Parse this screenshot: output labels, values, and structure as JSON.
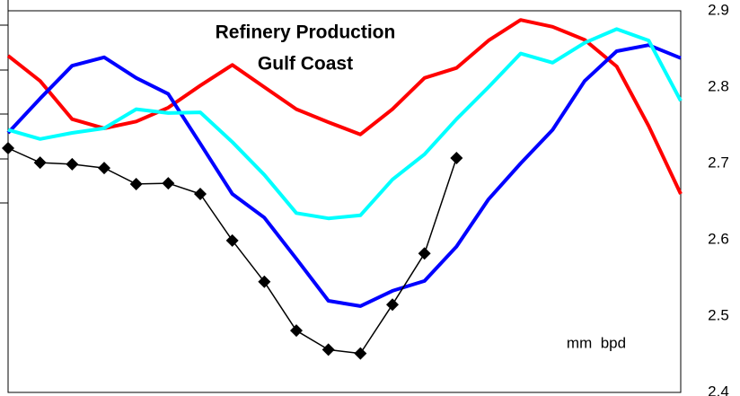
{
  "chart_data": {
    "type": "line",
    "title": "Refinery Production",
    "subtitle": "Gulf Coast",
    "annotation": "mm  bpd",
    "categories": [
      null,
      null,
      null,
      null,
      null,
      null,
      null,
      null,
      null,
      null,
      null,
      null,
      null,
      null,
      null,
      null,
      null,
      null,
      null,
      null,
      null,
      null
    ],
    "ylim": [
      2.4,
      2.9
    ],
    "yticks": [
      2.4,
      2.5,
      2.6,
      2.7,
      2.8,
      2.9
    ],
    "y_axis_side": "right",
    "grid": false,
    "series": [
      {
        "color": "#ff0000",
        "values": [
          2.841,
          2.808,
          2.758,
          2.746,
          2.755,
          2.773,
          2.802,
          2.829,
          2.8,
          2.771,
          2.754,
          2.738,
          2.771,
          2.812,
          2.825,
          2.861,
          2.888,
          2.879,
          2.862,
          2.827,
          2.749,
          2.66
        ]
      },
      {
        "color": "#0000ff",
        "values": [
          2.74,
          2.785,
          2.828,
          2.839,
          2.812,
          2.791,
          2.726,
          2.66,
          2.629,
          2.575,
          2.52,
          2.513,
          2.533,
          2.546,
          2.591,
          2.653,
          2.7,
          2.744,
          2.808,
          2.847,
          2.855,
          2.838
        ]
      },
      {
        "color": "#00ffff",
        "values": [
          2.744,
          2.732,
          2.74,
          2.746,
          2.771,
          2.766,
          2.767,
          2.728,
          2.685,
          2.635,
          2.628,
          2.632,
          2.679,
          2.712,
          2.758,
          2.8,
          2.844,
          2.832,
          2.858,
          2.876,
          2.861,
          2.782
        ]
      },
      {
        "color": "#000000",
        "marker": "diamond",
        "values": [
          2.72,
          2.701,
          2.699,
          2.694,
          2.673,
          2.674,
          2.66,
          2.599,
          2.545,
          2.481,
          2.456,
          2.451,
          2.515,
          2.582,
          2.707,
          null,
          null,
          null,
          null,
          null,
          null,
          null
        ]
      }
    ]
  }
}
